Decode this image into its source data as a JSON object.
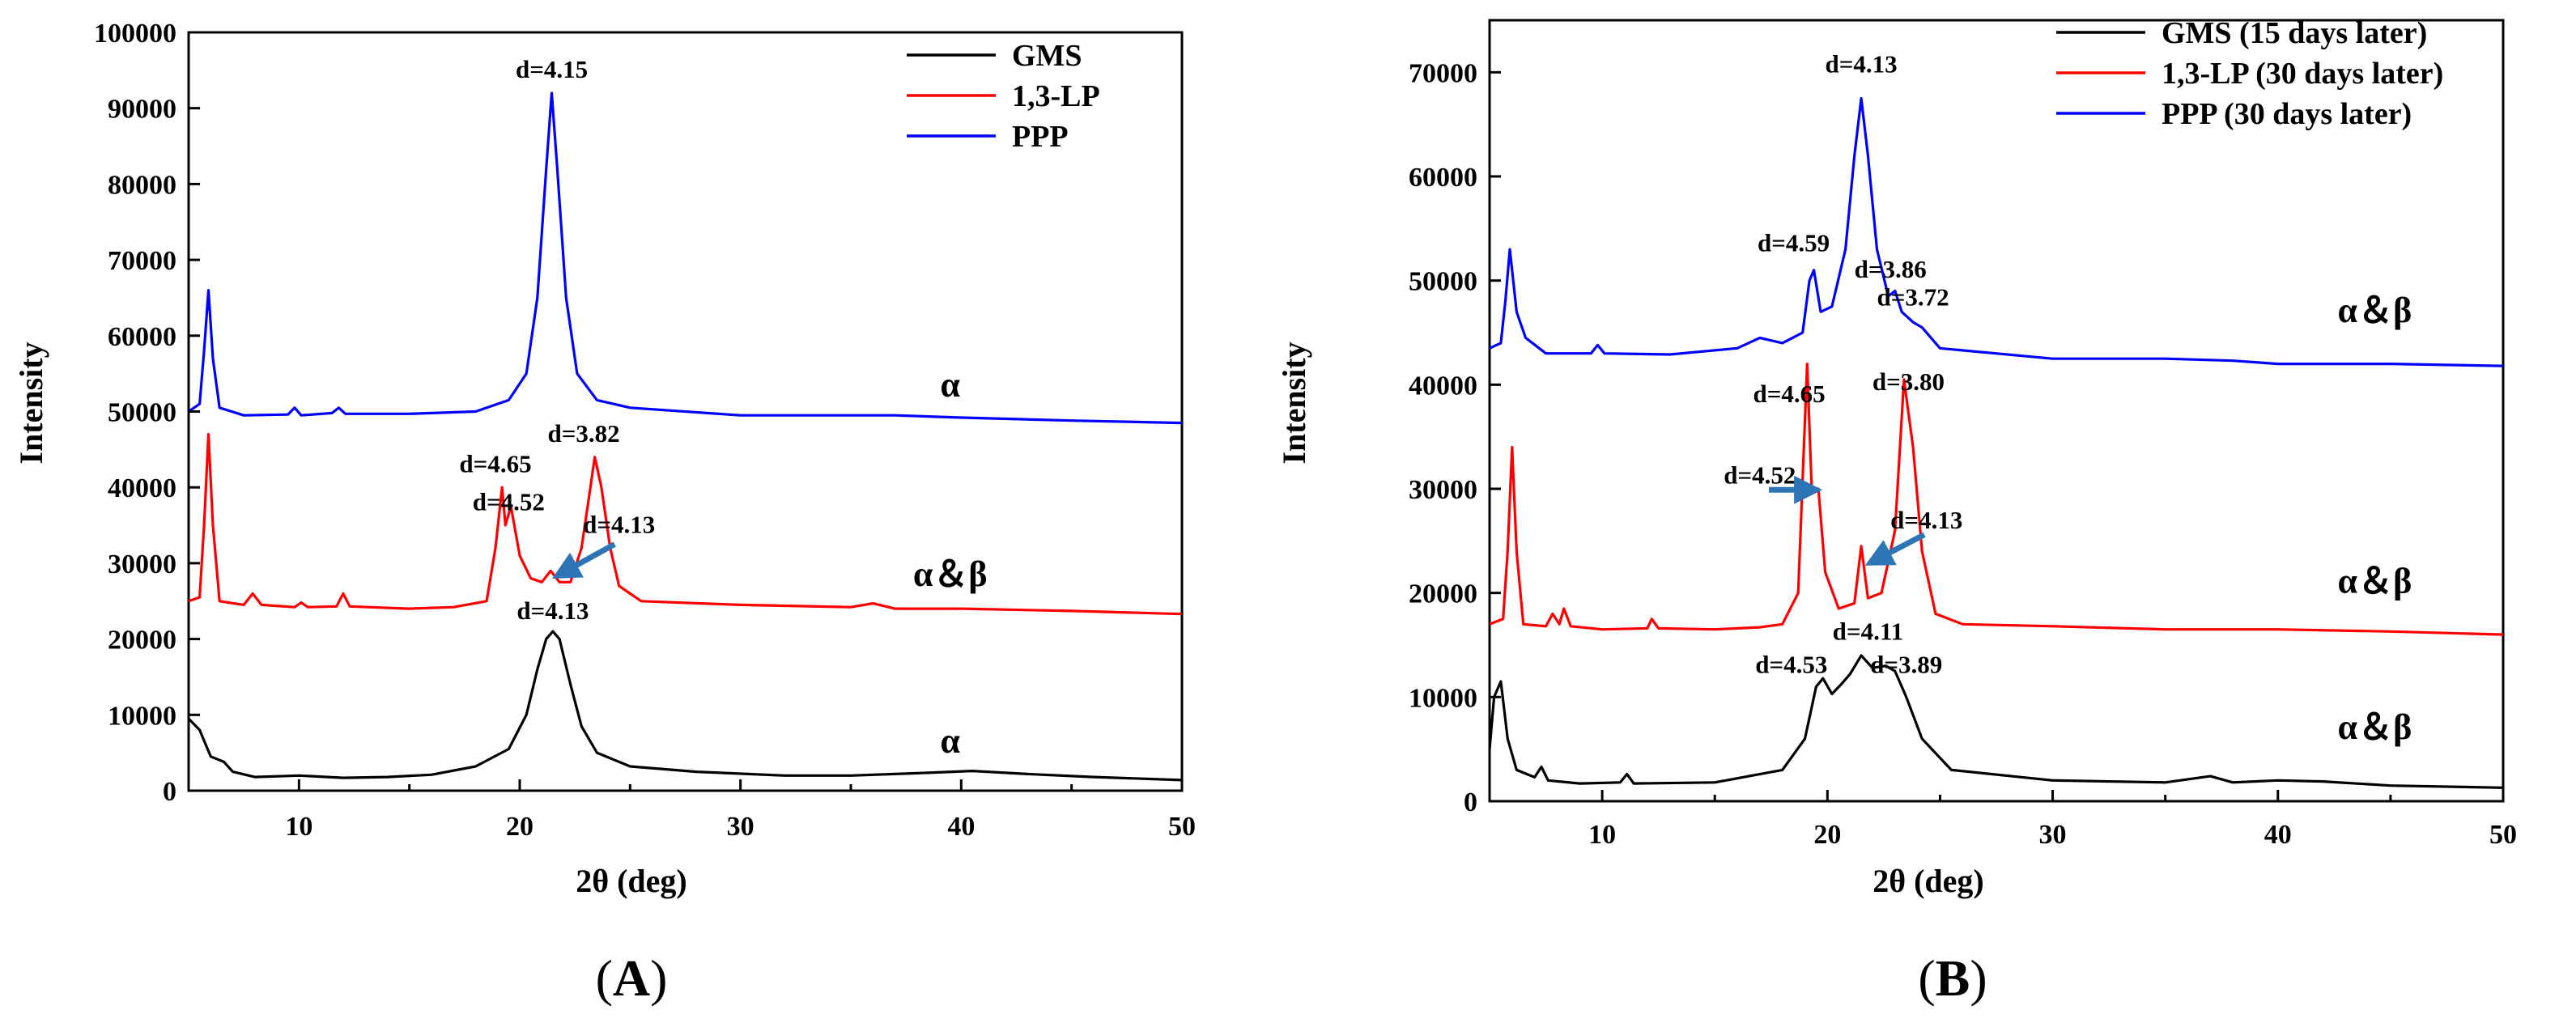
{
  "chart_data": [
    {
      "panel": "A",
      "panel_label": "A",
      "type": "line",
      "title": "",
      "xlabel": "2θ (deg)",
      "ylabel": "Intensity",
      "xlim": [
        5,
        50
      ],
      "ylim": [
        0,
        100000
      ],
      "xticks": [
        10,
        20,
        30,
        40,
        50
      ],
      "yticks": [
        0,
        10000,
        20000,
        30000,
        40000,
        50000,
        60000,
        70000,
        80000,
        90000,
        100000
      ],
      "legend_position": "top-right",
      "series": [
        {
          "name": "GMS",
          "color": "#000000",
          "points": [
            [
              5,
              9500
            ],
            [
              5.5,
              8000
            ],
            [
              6,
              4500
            ],
            [
              6.6,
              3800
            ],
            [
              7,
              2500
            ],
            [
              8,
              1800
            ],
            [
              10,
              2000
            ],
            [
              12,
              1700
            ],
            [
              14,
              1800
            ],
            [
              16,
              2100
            ],
            [
              18,
              3200
            ],
            [
              19.5,
              5500
            ],
            [
              20.3,
              10000
            ],
            [
              20.8,
              16000
            ],
            [
              21.2,
              20000
            ],
            [
              21.5,
              21000
            ],
            [
              21.8,
              20000
            ],
            [
              22.3,
              14000
            ],
            [
              22.8,
              8500
            ],
            [
              23.5,
              5000
            ],
            [
              25,
              3200
            ],
            [
              28,
              2500
            ],
            [
              32,
              2000
            ],
            [
              35,
              2000
            ],
            [
              38,
              2300
            ],
            [
              40.5,
              2600
            ],
            [
              43,
              2200
            ],
            [
              46,
              1800
            ],
            [
              50,
              1400
            ]
          ]
        },
        {
          "name": "1,3-LP",
          "color": "#ff0000",
          "points": [
            [
              5,
              25000
            ],
            [
              5.5,
              25500
            ],
            [
              5.7,
              35000
            ],
            [
              5.9,
              47000
            ],
            [
              6.1,
              35000
            ],
            [
              6.4,
              25000
            ],
            [
              7.5,
              24500
            ],
            [
              7.9,
              26000
            ],
            [
              8.3,
              24500
            ],
            [
              9.8,
              24200
            ],
            [
              10.1,
              24800
            ],
            [
              10.4,
              24200
            ],
            [
              11.7,
              24300
            ],
            [
              12,
              26000
            ],
            [
              12.3,
              24300
            ],
            [
              15,
              24000
            ],
            [
              17,
              24200
            ],
            [
              18.5,
              25000
            ],
            [
              18.9,
              32000
            ],
            [
              19.2,
              40000
            ],
            [
              19.35,
              35000
            ],
            [
              19.6,
              37500
            ],
            [
              20,
              31000
            ],
            [
              20.5,
              28000
            ],
            [
              21,
              27500
            ],
            [
              21.4,
              29000
            ],
            [
              21.8,
              27500
            ],
            [
              22.3,
              27500
            ],
            [
              22.8,
              32000
            ],
            [
              23.2,
              40000
            ],
            [
              23.4,
              44000
            ],
            [
              23.7,
              40000
            ],
            [
              24.1,
              32000
            ],
            [
              24.5,
              27000
            ],
            [
              25.5,
              25000
            ],
            [
              30,
              24500
            ],
            [
              35,
              24200
            ],
            [
              36,
              24700
            ],
            [
              37,
              24000
            ],
            [
              40,
              24000
            ],
            [
              45,
              23700
            ],
            [
              50,
              23300
            ]
          ]
        },
        {
          "name": "PPP",
          "color": "#0000ff",
          "points": [
            [
              5,
              50000
            ],
            [
              5.5,
              51000
            ],
            [
              5.7,
              58000
            ],
            [
              5.9,
              66000
            ],
            [
              6.1,
              57000
            ],
            [
              6.4,
              50500
            ],
            [
              7.5,
              49500
            ],
            [
              9.5,
              49600
            ],
            [
              9.8,
              50500
            ],
            [
              10.1,
              49500
            ],
            [
              11.5,
              49800
            ],
            [
              11.8,
              50500
            ],
            [
              12.1,
              49700
            ],
            [
              15,
              49700
            ],
            [
              18,
              50000
            ],
            [
              19.5,
              51500
            ],
            [
              20.3,
              55000
            ],
            [
              20.8,
              65000
            ],
            [
              21.2,
              82000
            ],
            [
              21.45,
              92000
            ],
            [
              21.7,
              82000
            ],
            [
              22.1,
              65000
            ],
            [
              22.6,
              55000
            ],
            [
              23.5,
              51500
            ],
            [
              25,
              50500
            ],
            [
              30,
              49500
            ],
            [
              37,
              49500
            ],
            [
              40,
              49200
            ],
            [
              45,
              48800
            ],
            [
              50,
              48500
            ]
          ]
        }
      ],
      "annotations": [
        {
          "text": "d=4.15",
          "x": 21.45,
          "y": 94000
        },
        {
          "text": "d=4.65",
          "x": 18.9,
          "y": 42000
        },
        {
          "text": "d=4.52",
          "x": 19.5,
          "y": 37000
        },
        {
          "text": "d=3.82",
          "x": 22.9,
          "y": 46000
        },
        {
          "text": "d=4.13",
          "x": 24.5,
          "y": 34000
        },
        {
          "text": "d=4.13",
          "x": 21.5,
          "y": 22600
        }
      ],
      "arrows": [
        {
          "from": [
            24.3,
            32500
          ],
          "to": [
            21.8,
            28500
          ],
          "color": "#2e75b6"
        }
      ],
      "phase_labels": [
        {
          "text": "α",
          "x": 39.5,
          "y": 52000
        },
        {
          "text": "α＆β",
          "x": 39.5,
          "y": 27000
        },
        {
          "text": "α",
          "x": 39.5,
          "y": 5000
        }
      ]
    },
    {
      "panel": "B",
      "panel_label": "B",
      "type": "line",
      "title": "",
      "xlabel": "2θ (deg)",
      "ylabel": "Intensity",
      "xlim": [
        5,
        50
      ],
      "ylim": [
        0,
        75000
      ],
      "xticks": [
        10,
        20,
        30,
        40,
        50
      ],
      "yticks": [
        0,
        10000,
        20000,
        30000,
        40000,
        50000,
        60000,
        70000
      ],
      "legend_position": "top-right",
      "series": [
        {
          "name": "GMS (15 days later)",
          "color": "#000000",
          "points": [
            [
              5,
              5000
            ],
            [
              5.2,
              10000
            ],
            [
              5.5,
              11500
            ],
            [
              5.8,
              6000
            ],
            [
              6.2,
              3000
            ],
            [
              7,
              2300
            ],
            [
              7.3,
              3300
            ],
            [
              7.6,
              2000
            ],
            [
              9,
              1700
            ],
            [
              10.8,
              1800
            ],
            [
              11.1,
              2600
            ],
            [
              11.4,
              1700
            ],
            [
              15,
              1800
            ],
            [
              18,
              3000
            ],
            [
              19,
              6000
            ],
            [
              19.5,
              11000
            ],
            [
              19.8,
              11800
            ],
            [
              20.2,
              10300
            ],
            [
              20.6,
              11200
            ],
            [
              21,
              12200
            ],
            [
              21.5,
              14000
            ],
            [
              22,
              12800
            ],
            [
              22.6,
              13000
            ],
            [
              23,
              12500
            ],
            [
              23.5,
              10000
            ],
            [
              24.2,
              6000
            ],
            [
              25.5,
              3000
            ],
            [
              30,
              2000
            ],
            [
              35,
              1800
            ],
            [
              37,
              2400
            ],
            [
              38,
              1800
            ],
            [
              40,
              2000
            ],
            [
              42,
              1900
            ],
            [
              45,
              1500
            ],
            [
              50,
              1300
            ]
          ]
        },
        {
          "name": "1,3-LP (30 days later)",
          "color": "#ff0000",
          "points": [
            [
              5,
              17000
            ],
            [
              5.6,
              17500
            ],
            [
              5.8,
              24000
            ],
            [
              6,
              34000
            ],
            [
              6.2,
              24000
            ],
            [
              6.5,
              17000
            ],
            [
              7.5,
              16800
            ],
            [
              7.8,
              18000
            ],
            [
              8.1,
              17000
            ],
            [
              8.3,
              18500
            ],
            [
              8.6,
              16800
            ],
            [
              10,
              16500
            ],
            [
              12,
              16600
            ],
            [
              12.2,
              17500
            ],
            [
              12.5,
              16600
            ],
            [
              15,
              16500
            ],
            [
              17,
              16700
            ],
            [
              18,
              17000
            ],
            [
              18.7,
              20000
            ],
            [
              19.1,
              42000
            ],
            [
              19.3,
              30000
            ],
            [
              19.6,
              30000
            ],
            [
              19.9,
              22000
            ],
            [
              20.5,
              18500
            ],
            [
              21.2,
              19000
            ],
            [
              21.5,
              24500
            ],
            [
              21.8,
              19500
            ],
            [
              22.4,
              20000
            ],
            [
              23,
              26000
            ],
            [
              23.4,
              40500
            ],
            [
              23.8,
              34000
            ],
            [
              24.2,
              24000
            ],
            [
              24.8,
              18000
            ],
            [
              26,
              17000
            ],
            [
              30,
              16800
            ],
            [
              35,
              16500
            ],
            [
              40,
              16500
            ],
            [
              45,
              16300
            ],
            [
              50,
              16000
            ]
          ]
        },
        {
          "name": "PPP (30 days later)",
          "color": "#0000ff",
          "points": [
            [
              5,
              43500
            ],
            [
              5.5,
              44000
            ],
            [
              5.7,
              48000
            ],
            [
              5.9,
              53000
            ],
            [
              6.2,
              47000
            ],
            [
              6.6,
              44500
            ],
            [
              7.5,
              43000
            ],
            [
              9.5,
              43000
            ],
            [
              9.8,
              43800
            ],
            [
              10.1,
              43000
            ],
            [
              13,
              42900
            ],
            [
              16,
              43500
            ],
            [
              17,
              44500
            ],
            [
              18,
              44000
            ],
            [
              18.9,
              45000
            ],
            [
              19.2,
              50000
            ],
            [
              19.4,
              51000
            ],
            [
              19.7,
              47000
            ],
            [
              20.2,
              47500
            ],
            [
              20.8,
              53000
            ],
            [
              21.2,
              62000
            ],
            [
              21.5,
              67500
            ],
            [
              21.8,
              62000
            ],
            [
              22.2,
              53000
            ],
            [
              22.7,
              48500
            ],
            [
              23,
              49000
            ],
            [
              23.3,
              47000
            ],
            [
              23.8,
              46000
            ],
            [
              24.2,
              45500
            ],
            [
              25,
              43500
            ],
            [
              30,
              42500
            ],
            [
              35,
              42500
            ],
            [
              38,
              42300
            ],
            [
              40,
              42000
            ],
            [
              45,
              42000
            ],
            [
              50,
              41800
            ]
          ]
        }
      ],
      "annotations": [
        {
          "text": "d=4.13",
          "x": 21.5,
          "y": 70000
        },
        {
          "text": "d=4.59",
          "x": 18.5,
          "y": 52800
        },
        {
          "text": "d=3.86",
          "x": 22.8,
          "y": 50300
        },
        {
          "text": "d=3.72",
          "x": 23.8,
          "y": 47600
        },
        {
          "text": "d=4.65",
          "x": 18.3,
          "y": 38300
        },
        {
          "text": "d=3.80",
          "x": 23.6,
          "y": 39500
        },
        {
          "text": "d=4.52",
          "x": 17.0,
          "y": 30500
        },
        {
          "text": "d=4.13",
          "x": 24.4,
          "y": 26200
        },
        {
          "text": "d=4.53",
          "x": 18.4,
          "y": 12300
        },
        {
          "text": "d=4.11",
          "x": 21.8,
          "y": 15500
        },
        {
          "text": "d=3.89",
          "x": 23.5,
          "y": 12300
        }
      ],
      "arrows": [
        {
          "from": [
            17.4,
            29900
          ],
          "to": [
            19.4,
            29900
          ],
          "color": "#2e75b6"
        },
        {
          "from": [
            24.3,
            25600
          ],
          "to": [
            22.0,
            23000
          ],
          "color": "#2e75b6"
        }
      ],
      "phase_labels": [
        {
          "text": "α＆β",
          "x": 44.3,
          "y": 46000
        },
        {
          "text": "α＆β",
          "x": 44.3,
          "y": 20000
        },
        {
          "text": "α＆β",
          "x": 44.3,
          "y": 6000
        }
      ]
    }
  ]
}
